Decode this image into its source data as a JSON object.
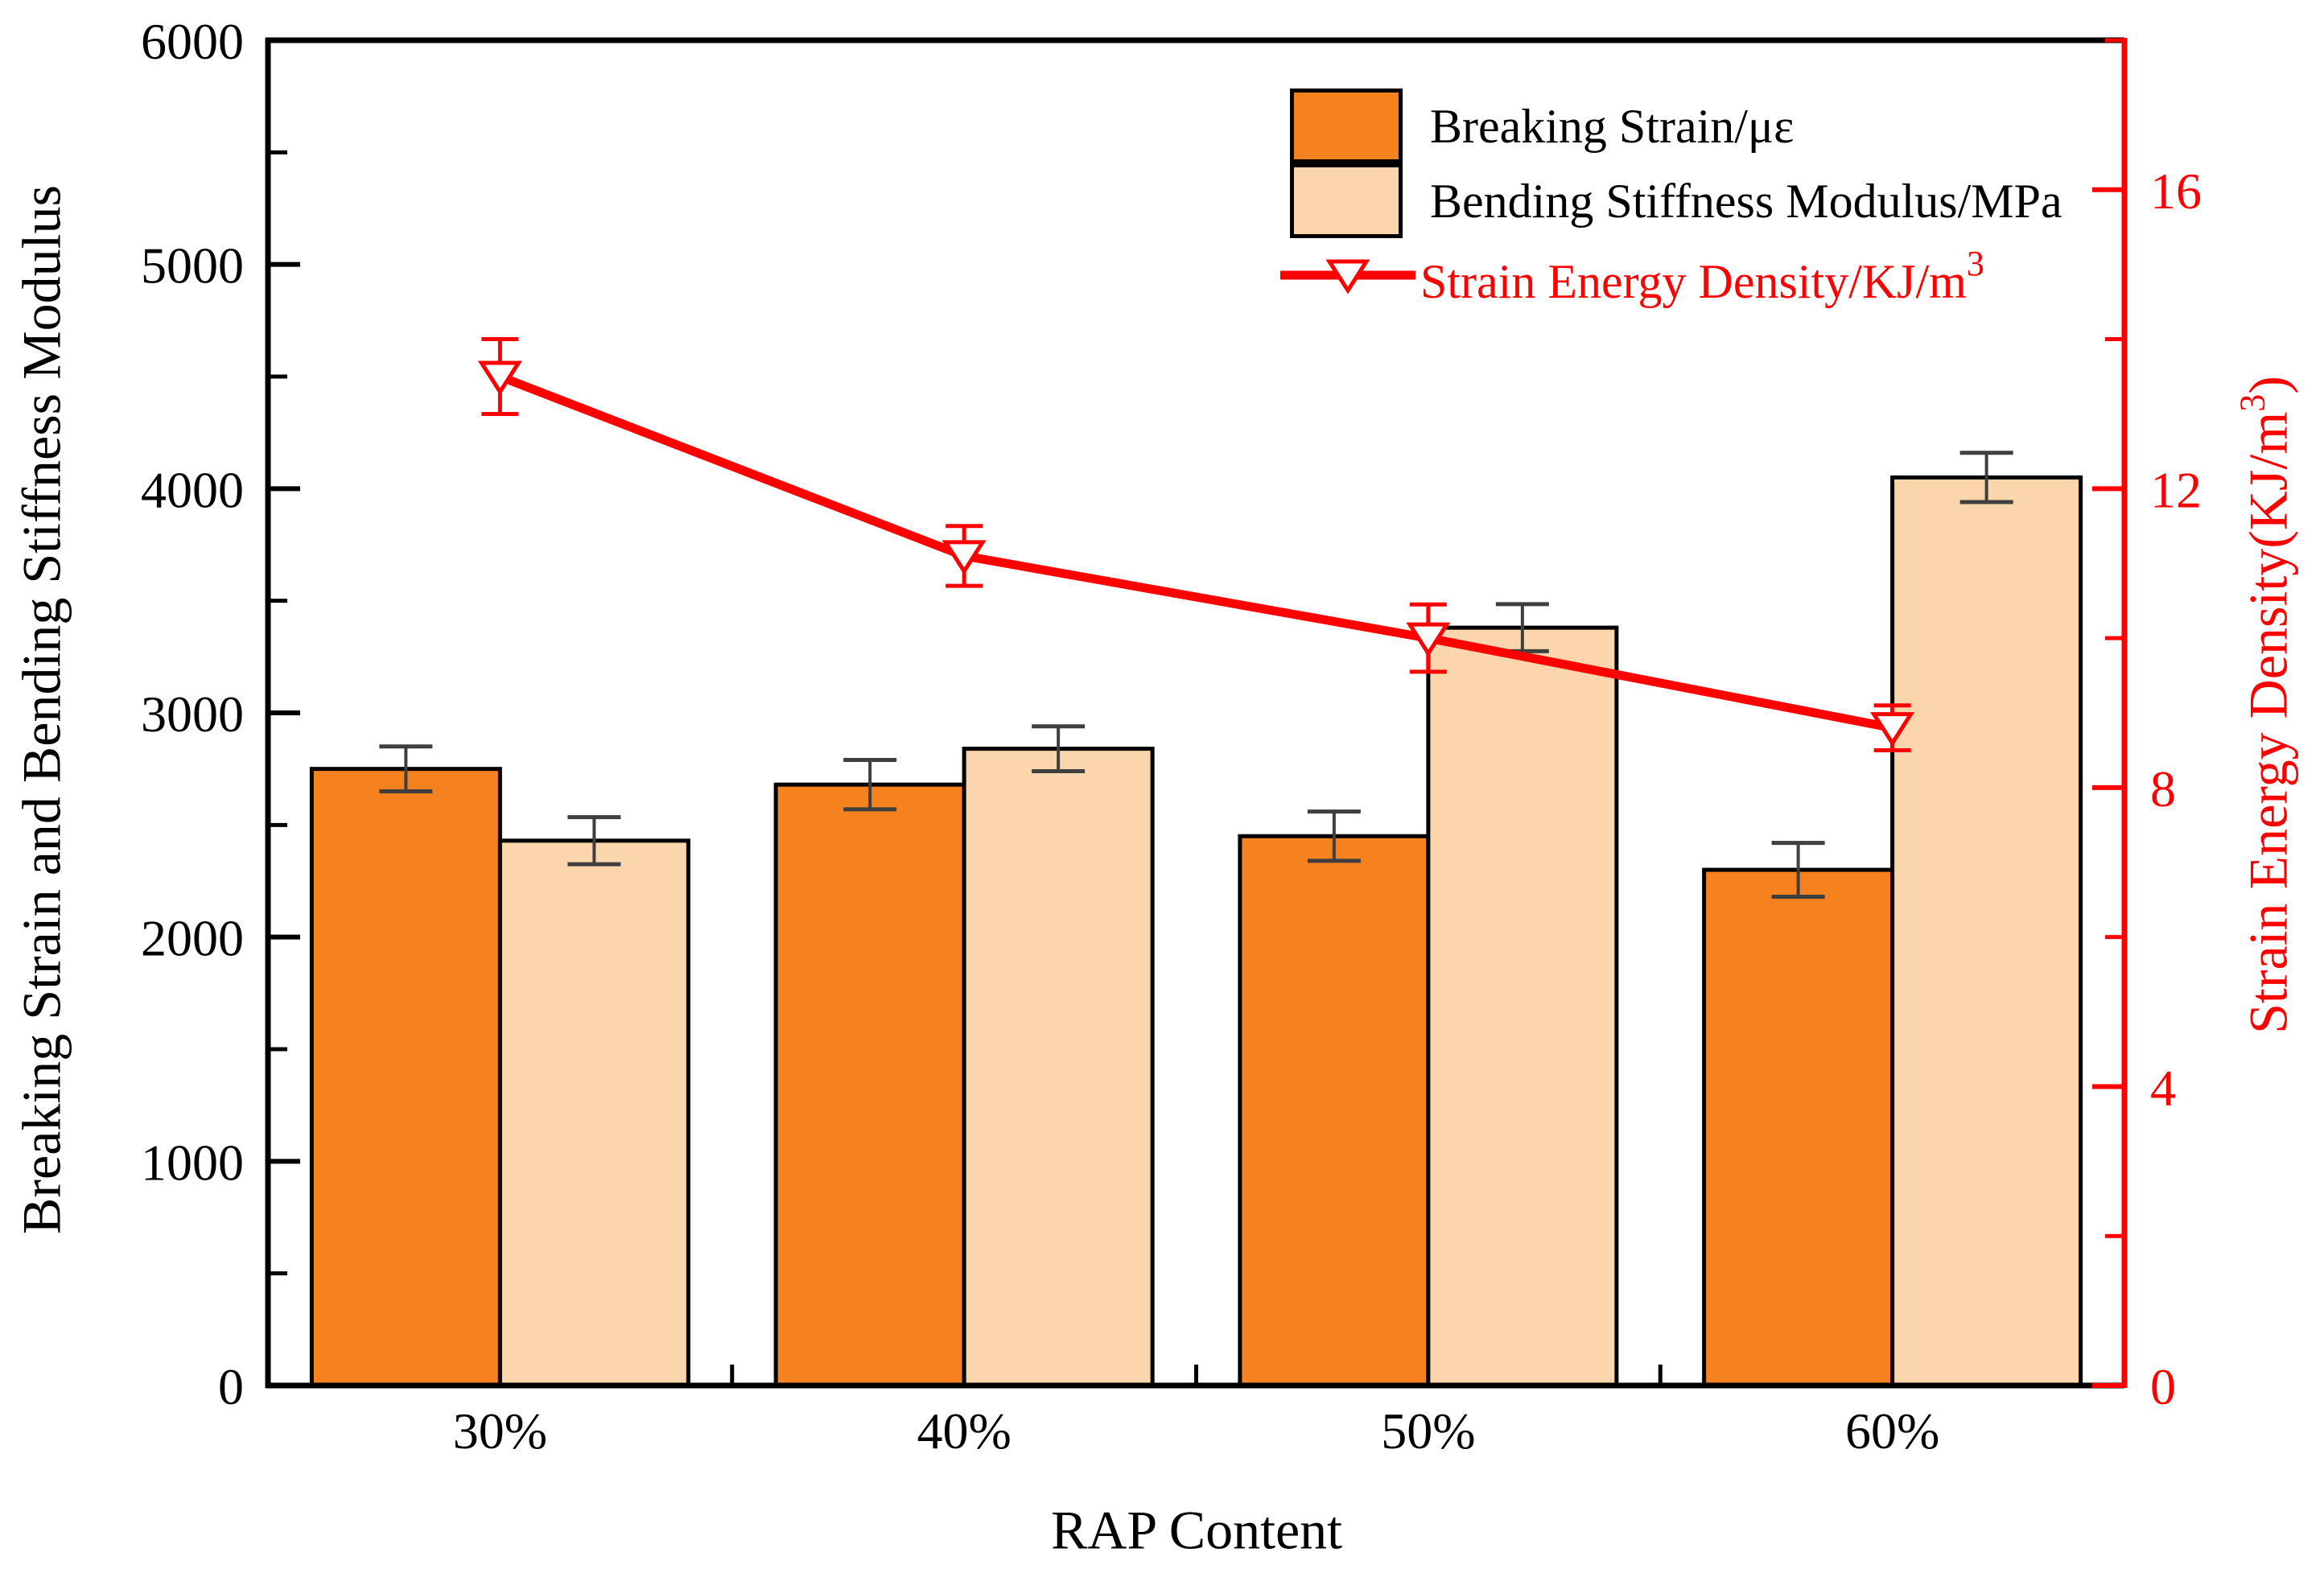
{
  "chart_data": {
    "type": "bar+line",
    "categories": [
      "30%",
      "40%",
      "50%",
      "60%"
    ],
    "x_axis": {
      "label": "RAP Content"
    },
    "left_axis": {
      "label": "Breaking Strain and Bending Stiffness Modulus",
      "min": 0,
      "max": 6000,
      "major_ticks": [
        0,
        1000,
        2000,
        3000,
        4000,
        5000,
        6000
      ],
      "minor_step": 500,
      "color": "#000000"
    },
    "right_axis": {
      "label_base": "Strain Energy Density(KJ/m",
      "label_sup": "3",
      "label_close": ")",
      "min": 0,
      "max": 18,
      "major_ticks": [
        0,
        4,
        8,
        12,
        16
      ],
      "minor_step": 2,
      "color": "#FF0000"
    },
    "series": [
      {
        "name": "Breaking Strain/με",
        "type": "bar",
        "axis": "left",
        "color": "#F5821E",
        "edge_color": "#000000",
        "values": [
          2750,
          2680,
          2450,
          2300
        ],
        "errors": [
          100,
          110,
          110,
          120
        ]
      },
      {
        "name": "Bending Stiffness Modulus/MPa",
        "type": "bar",
        "axis": "left",
        "color": "#FBD5AB",
        "edge_color": "#000000",
        "values": [
          2430,
          2840,
          3380,
          4050
        ],
        "errors": [
          105,
          100,
          105,
          110
        ]
      },
      {
        "name": "Strain Energy Density/KJ/m³",
        "legend_base": "Strain Energy Density/KJ/m",
        "legend_sup": "3",
        "type": "line",
        "axis": "right",
        "marker": "open-triangle-down",
        "color": "#FF0000",
        "values": [
          13.5,
          11.1,
          10.0,
          8.8
        ],
        "errors": [
          0.5,
          0.4,
          0.45,
          0.3
        ]
      }
    ],
    "error_bar_color": "#3F3F3F",
    "legend_position": "top-right",
    "grid": false
  }
}
